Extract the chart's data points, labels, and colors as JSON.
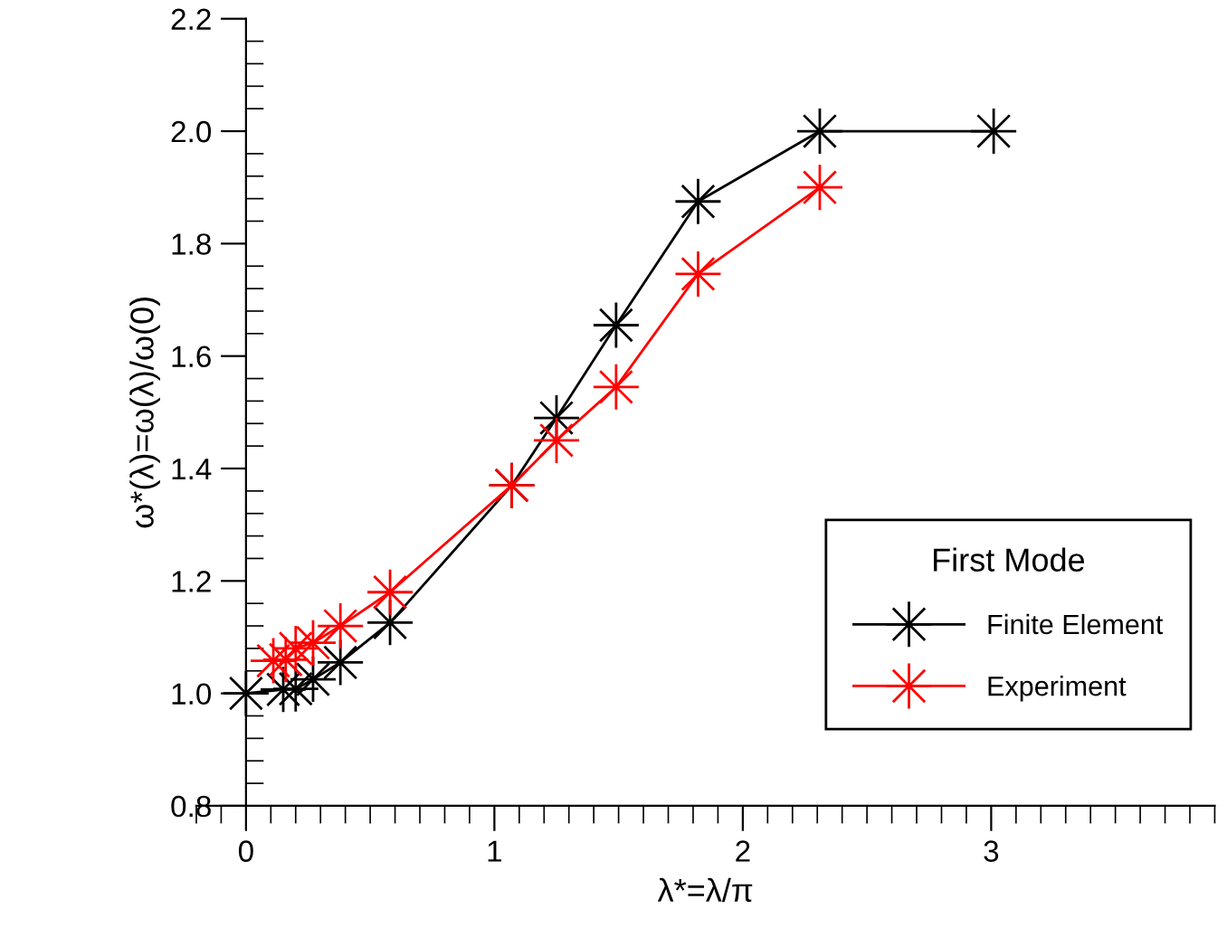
{
  "chart_data": {
    "type": "line",
    "xlabel": "λ*=λ/π",
    "ylabel": "ω*(λ)=ω(λ)/ω(0)",
    "xlim": [
      -0.2,
      3.9
    ],
    "ylim": [
      0.8,
      2.2
    ],
    "xticks": [
      0,
      1,
      2,
      3
    ],
    "yticks": [
      {
        "value": 0.8,
        "label": "0.8"
      },
      {
        "value": 1.0,
        "label": "1.0"
      },
      {
        "value": 1.2,
        "label": "1.2"
      },
      {
        "value": 1.4,
        "label": "1.4"
      },
      {
        "value": 1.6,
        "label": "1.6"
      },
      {
        "value": 1.8,
        "label": "1.8"
      },
      {
        "value": 2.0,
        "label": "2.0"
      },
      {
        "value": 2.2,
        "label": "2.2"
      }
    ],
    "legend": "bottom right",
    "legend_title": "First Mode",
    "marker": "star",
    "line_style": "solid",
    "grid": false,
    "series": [
      {
        "name": "Finite Element",
        "color": "#000000",
        "x": [
          0,
          0.15,
          0.2,
          0.27,
          0.38,
          0.58,
          1.07,
          1.25,
          1.49,
          1.82,
          2.31,
          3.01
        ],
        "values": [
          1.0,
          1.007,
          1.008,
          1.025,
          1.055,
          1.126,
          1.37,
          1.49,
          1.655,
          1.875,
          2.0,
          2.0
        ]
      },
      {
        "name": "Experiment",
        "color": "#ff0000",
        "x": [
          0.11,
          0.16,
          0.2,
          0.27,
          0.38,
          0.58,
          1.07,
          1.25,
          1.49,
          1.82,
          2.31
        ],
        "values": [
          1.058,
          1.06,
          1.08,
          1.09,
          1.12,
          1.18,
          1.37,
          1.45,
          1.545,
          1.746,
          1.9
        ]
      }
    ]
  }
}
